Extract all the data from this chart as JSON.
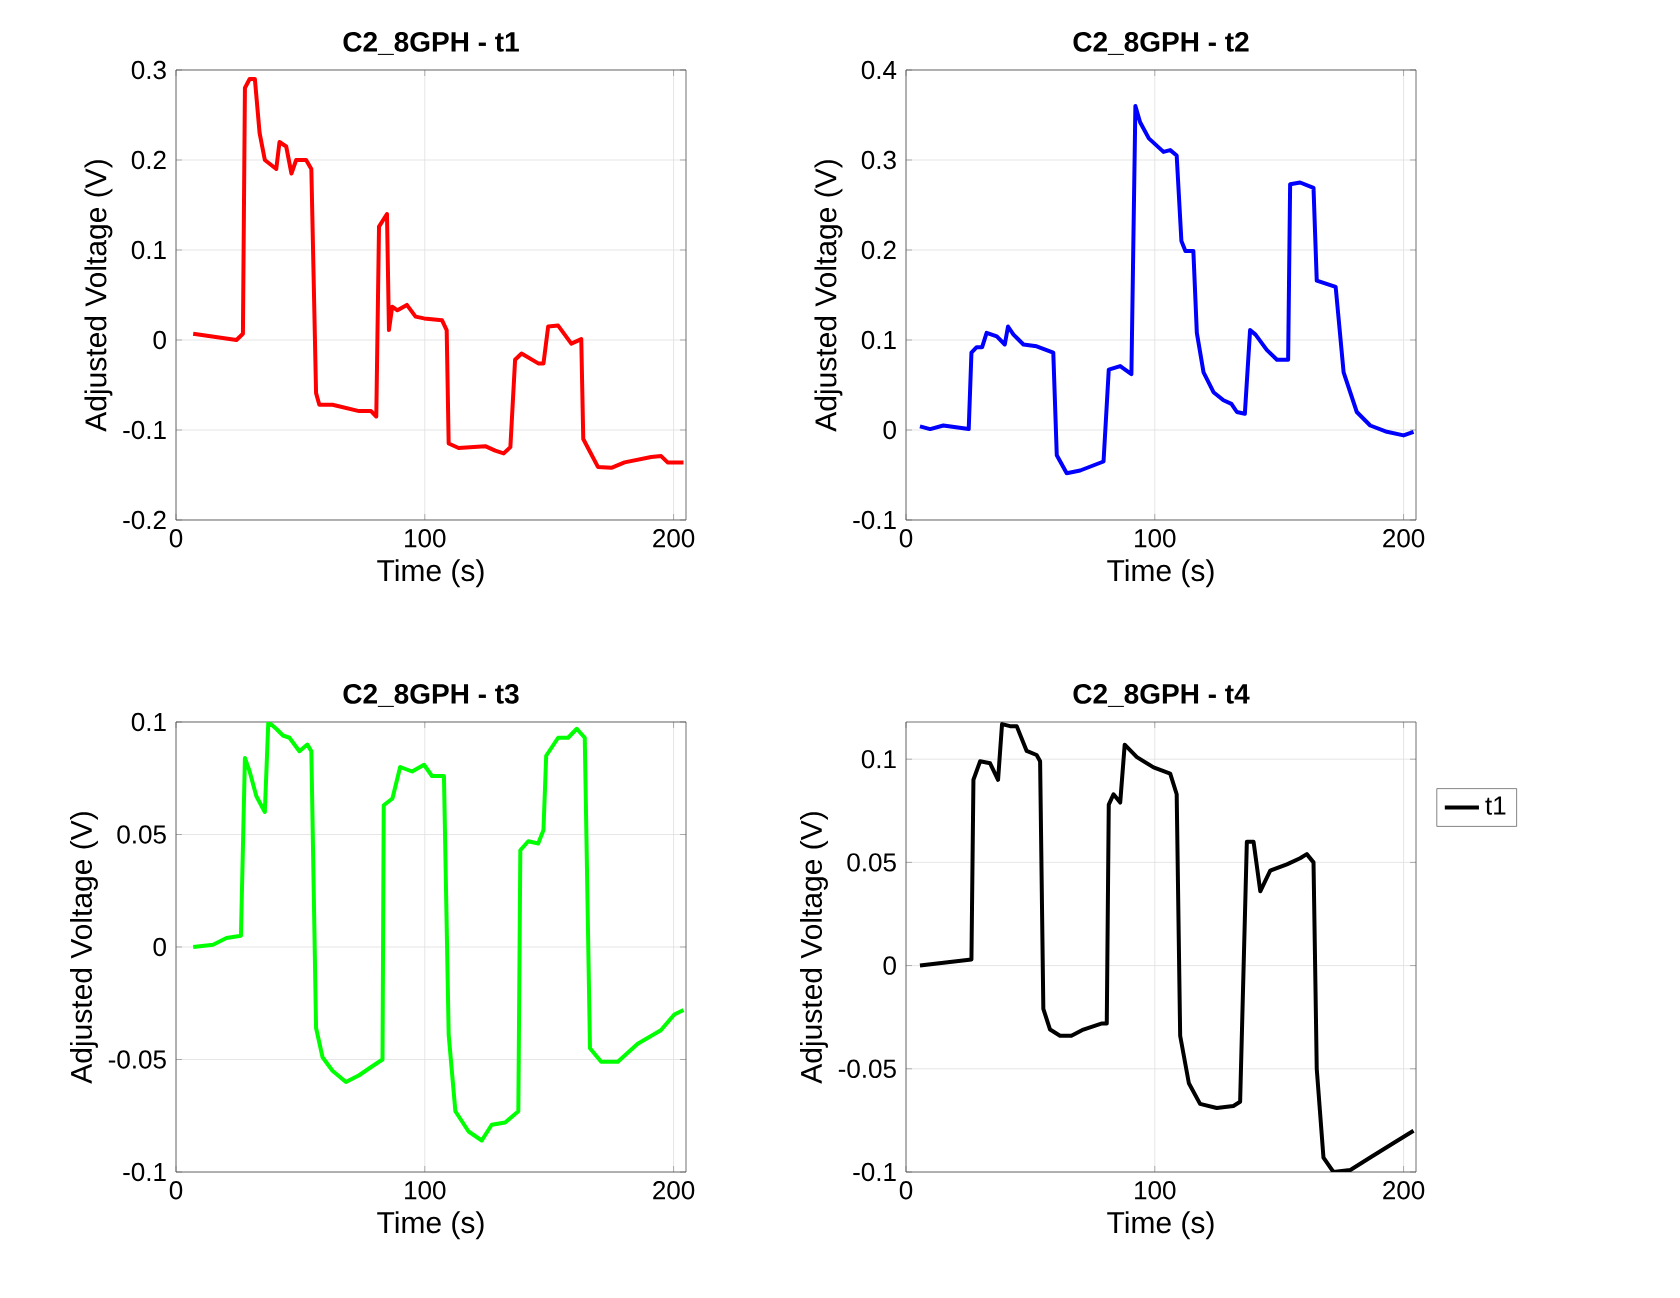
{
  "chart_data": [
    {
      "type": "line",
      "title": "C2_8GPH - t1",
      "xlabel": "Time (s)",
      "ylabel": "Adjusted Voltage (V)",
      "xlim": [
        0,
        205
      ],
      "ylim": [
        -0.2,
        0.3
      ],
      "xticks": [
        0,
        100,
        200
      ],
      "yticks": [
        -0.2,
        -0.1,
        0,
        0.1,
        0.2,
        0.3
      ],
      "grid": true,
      "x": [
        6.9,
        24.3,
        26.9,
        27.7,
        29.6,
        31.7,
        33.6,
        35.7,
        40.3,
        41.6,
        44.3,
        46.4,
        48.3,
        52.3,
        54.4,
        56.3,
        57.6,
        62.9,
        73.6,
        78.4,
        80.5,
        81.6,
        84.8,
        85.6,
        86.9,
        89,
        92.8,
        96.3,
        99.7,
        106.9,
        108.8,
        109.6,
        113.6,
        124.3,
        128.3,
        131.7,
        134.4,
        136.3,
        138.9,
        145.6,
        147.7,
        149.6,
        153.6,
        158.9,
        162.9,
        163.7,
        169.6,
        175,
        180.3,
        191,
        195,
        197.6,
        204
      ],
      "series": [
        {
          "color": "#ff0000",
          "values": [
            0.007,
            0,
            0.007,
            0.28,
            0.29,
            0.29,
            0.23,
            0.2,
            0.19,
            0.22,
            0.215,
            0.185,
            0.2,
            0.2,
            0.19,
            -0.059,
            -0.072,
            -0.072,
            -0.079,
            -0.079,
            -0.085,
            0.126,
            0.14,
            0.011,
            0.037,
            0.033,
            0.039,
            0.026,
            0.024,
            0.022,
            0.011,
            -0.115,
            -0.12,
            -0.118,
            -0.123,
            -0.126,
            -0.119,
            -0.022,
            -0.015,
            -0.026,
            -0.026,
            0.015,
            0.016,
            -0.004,
            0.001,
            -0.11,
            -0.141,
            -0.142,
            -0.136,
            -0.13,
            -0.129,
            -0.136,
            -0.136
          ]
        }
      ]
    },
    {
      "type": "line",
      "title": "C2_8GPH - t2",
      "xlabel": "Time (s)",
      "ylabel": "Adjusted Voltage (V)",
      "xlim": [
        0,
        205
      ],
      "ylim": [
        -0.1,
        0.4
      ],
      "xticks": [
        0,
        100,
        200
      ],
      "yticks": [
        -0.1,
        0,
        0.1,
        0.2,
        0.3,
        0.4
      ],
      "grid": true,
      "x": [
        5.6,
        9.7,
        15,
        25.2,
        26.3,
        28.4,
        30.6,
        32.4,
        36.5,
        39.7,
        41,
        43.2,
        47.2,
        52.5,
        59.2,
        60.6,
        64.6,
        70,
        79.4,
        81.5,
        86.1,
        90.6,
        92.2,
        94.1,
        97.6,
        103.5,
        106.2,
        108.8,
        110.7,
        112.3,
        115.5,
        116.9,
        119.6,
        123.6,
        127.6,
        130.8,
        133,
        136.2,
        138.3,
        140.5,
        145,
        149.1,
        153.6,
        154.4,
        158.4,
        163.8,
        165.1,
        172.7,
        175.9,
        181.2,
        186.6,
        193.3,
        200,
        204
      ],
      "series": [
        {
          "color": "#0000ff",
          "values": [
            0.004,
            0.001,
            0.005,
            0.001,
            0.086,
            0.092,
            0.092,
            0.108,
            0.104,
            0.095,
            0.115,
            0.106,
            0.095,
            0.093,
            0.086,
            -0.028,
            -0.048,
            -0.045,
            -0.035,
            0.067,
            0.071,
            0.062,
            0.36,
            0.342,
            0.324,
            0.309,
            0.311,
            0.305,
            0.21,
            0.199,
            0.199,
            0.108,
            0.064,
            0.042,
            0.033,
            0.029,
            0.02,
            0.018,
            0.111,
            0.106,
            0.089,
            0.078,
            0.078,
            0.273,
            0.275,
            0.269,
            0.166,
            0.159,
            0.064,
            0.02,
            0.005,
            -0.002,
            -0.006,
            -0.002
          ]
        }
      ]
    },
    {
      "type": "line",
      "title": "C2_8GPH - t3",
      "xlabel": "Time (s)",
      "ylabel": "Adjusted Voltage (V)",
      "xlim": [
        0,
        205
      ],
      "ylim": [
        -0.1,
        0.1
      ],
      "xticks": [
        0,
        100,
        200
      ],
      "yticks": [
        -0.1,
        -0.05,
        0,
        0.05,
        0.1
      ],
      "grid": true,
      "x": [
        6.9,
        14.9,
        20.3,
        26.1,
        27.7,
        29.6,
        32.3,
        35.7,
        37.1,
        40.3,
        43,
        45.6,
        49.6,
        52.8,
        54.4,
        56.3,
        58.9,
        62.9,
        68.3,
        73.6,
        78.9,
        83,
        83.5,
        87,
        90.1,
        94.9,
        99.7,
        102.9,
        107.7,
        109.6,
        112.3,
        117.6,
        122.9,
        126.9,
        132.3,
        137.6,
        138.4,
        141.6,
        145.6,
        147.7,
        148.8,
        153.6,
        157.6,
        161.1,
        164.3,
        166.4,
        170.9,
        177.6,
        185.6,
        194.9,
        200.3,
        204
      ],
      "series": [
        {
          "color": "#00ff00",
          "values": [
            0,
            0.001,
            0.004,
            0.005,
            0.084,
            0.078,
            0.067,
            0.06,
            0.1,
            0.097,
            0.094,
            0.093,
            0.087,
            0.09,
            0.087,
            -0.036,
            -0.049,
            -0.055,
            -0.06,
            -0.057,
            -0.053,
            -0.05,
            0.063,
            0.066,
            0.08,
            0.078,
            0.081,
            0.076,
            0.076,
            -0.039,
            -0.073,
            -0.082,
            -0.086,
            -0.079,
            -0.078,
            -0.073,
            0.043,
            0.047,
            0.046,
            0.052,
            0.085,
            0.093,
            0.093,
            0.097,
            0.093,
            -0.045,
            -0.051,
            -0.051,
            -0.043,
            -0.037,
            -0.03,
            -0.028
          ]
        }
      ]
    },
    {
      "type": "line",
      "title": "C2_8GPH - t4",
      "xlabel": "Time (s)",
      "ylabel": "Adjusted Voltage (V)",
      "xlim": [
        0,
        205
      ],
      "ylim": [
        -0.1,
        0.118
      ],
      "xticks": [
        0,
        100,
        200
      ],
      "yticks": [
        -0.1,
        -0.05,
        0,
        0.05,
        0.1
      ],
      "grid": true,
      "legend": "right",
      "x": [
        5.6,
        26.3,
        27.1,
        29.8,
        33.8,
        37,
        38.6,
        41.8,
        44.5,
        48.5,
        52.5,
        53.9,
        55.2,
        57.9,
        61.9,
        66.5,
        71.3,
        78.8,
        80.7,
        81.5,
        83.4,
        86.1,
        87.9,
        92.8,
        99.5,
        106.2,
        108.8,
        110.2,
        113.7,
        118.2,
        124.9,
        131.6,
        134.3,
        137,
        139.7,
        142.4,
        146.4,
        153.1,
        158.4,
        161.1,
        163.8,
        165.1,
        167.8,
        171.8,
        178.6,
        186.6,
        197.3,
        204
      ],
      "series": [
        {
          "name": "t1",
          "color": "#000000",
          "values": [
            0,
            0.003,
            0.09,
            0.099,
            0.098,
            0.09,
            0.117,
            0.116,
            0.116,
            0.104,
            0.102,
            0.099,
            -0.021,
            -0.031,
            -0.034,
            -0.034,
            -0.031,
            -0.028,
            -0.028,
            0.078,
            0.083,
            0.079,
            0.107,
            0.101,
            0.096,
            0.093,
            0.083,
            -0.034,
            -0.057,
            -0.067,
            -0.069,
            -0.068,
            -0.066,
            0.06,
            0.06,
            0.036,
            0.046,
            0.049,
            0.052,
            0.054,
            0.05,
            -0.05,
            -0.093,
            -0.1,
            -0.099,
            -0.093,
            -0.085,
            -0.08
          ]
        }
      ]
    }
  ]
}
